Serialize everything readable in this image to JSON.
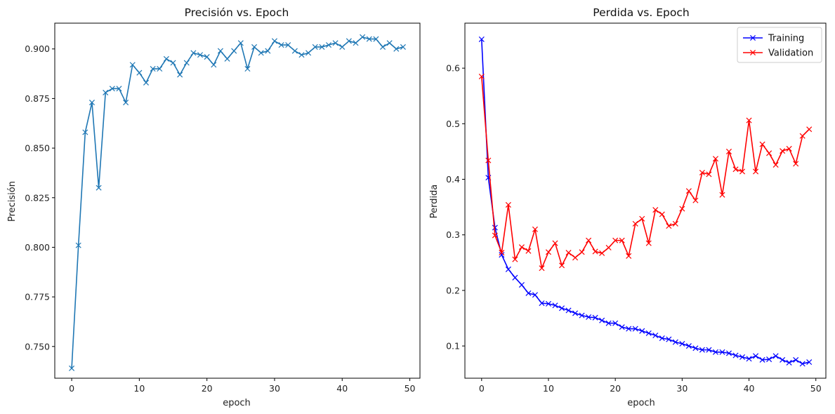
{
  "chart_data": [
    {
      "type": "line",
      "title": "Precisión vs. Epoch",
      "xlabel": "epoch",
      "ylabel": "Precisión",
      "xlim": [
        -2.5,
        51.5
      ],
      "ylim": [
        0.734,
        0.913
      ],
      "xticks": [
        "0",
        "10",
        "20",
        "30",
        "40",
        "50"
      ],
      "yticks": [
        "0.750",
        "0.775",
        "0.800",
        "0.825",
        "0.850",
        "0.875",
        "0.900"
      ],
      "grid": false,
      "legend": "none",
      "x": [
        0,
        1,
        2,
        3,
        4,
        5,
        6,
        7,
        8,
        9,
        10,
        11,
        12,
        13,
        14,
        15,
        16,
        17,
        18,
        19,
        20,
        21,
        22,
        23,
        24,
        25,
        26,
        27,
        28,
        29,
        30,
        31,
        32,
        33,
        34,
        35,
        36,
        37,
        38,
        39,
        40,
        41,
        42,
        43,
        44,
        45,
        46,
        47,
        48,
        49
      ],
      "series": [
        {
          "name": "",
          "color": "#1f77b4",
          "marker": "x",
          "values": [
            0.739,
            0.801,
            0.858,
            0.873,
            0.83,
            0.878,
            0.88,
            0.88,
            0.873,
            0.892,
            0.888,
            0.883,
            0.89,
            0.89,
            0.895,
            0.893,
            0.887,
            0.893,
            0.898,
            0.897,
            0.896,
            0.892,
            0.899,
            0.895,
            0.899,
            0.903,
            0.89,
            0.901,
            0.898,
            0.899,
            0.904,
            0.902,
            0.902,
            0.899,
            0.897,
            0.898,
            0.901,
            0.901,
            0.902,
            0.903,
            0.901,
            0.904,
            0.903,
            0.906,
            0.905,
            0.905,
            0.901,
            0.903,
            0.9,
            0.901
          ]
        }
      ]
    },
    {
      "type": "line",
      "title": "Perdida vs. Epoch",
      "xlabel": "epoch",
      "ylabel": "Perdida",
      "xlim": [
        -2.5,
        51.5
      ],
      "ylim": [
        0.042,
        0.681
      ],
      "xticks": [
        "0",
        "10",
        "20",
        "30",
        "40",
        "50"
      ],
      "yticks": [
        "0.1",
        "0.2",
        "0.3",
        "0.4",
        "0.5",
        "0.6"
      ],
      "grid": false,
      "legend": "top-right",
      "x": [
        0,
        1,
        2,
        3,
        4,
        5,
        6,
        7,
        8,
        9,
        10,
        11,
        12,
        13,
        14,
        15,
        16,
        17,
        18,
        19,
        20,
        21,
        22,
        23,
        24,
        25,
        26,
        27,
        28,
        29,
        30,
        31,
        32,
        33,
        34,
        35,
        36,
        37,
        38,
        39,
        40,
        41,
        42,
        43,
        44,
        45,
        46,
        47,
        48,
        49
      ],
      "series": [
        {
          "name": "Training",
          "color": "#0000ff",
          "marker": "x",
          "values": [
            0.652,
            0.403,
            0.313,
            0.264,
            0.238,
            0.223,
            0.21,
            0.195,
            0.192,
            0.177,
            0.176,
            0.173,
            0.168,
            0.164,
            0.159,
            0.155,
            0.152,
            0.151,
            0.146,
            0.141,
            0.141,
            0.134,
            0.131,
            0.131,
            0.127,
            0.123,
            0.119,
            0.114,
            0.112,
            0.107,
            0.104,
            0.1,
            0.096,
            0.093,
            0.093,
            0.089,
            0.089,
            0.087,
            0.083,
            0.08,
            0.077,
            0.082,
            0.075,
            0.076,
            0.082,
            0.075,
            0.07,
            0.075,
            0.068,
            0.071
          ]
        },
        {
          "name": "Validation",
          "color": "#ff0000",
          "marker": "x",
          "values": [
            0.585,
            0.434,
            0.299,
            0.268,
            0.354,
            0.256,
            0.278,
            0.271,
            0.31,
            0.24,
            0.269,
            0.285,
            0.245,
            0.268,
            0.259,
            0.269,
            0.29,
            0.27,
            0.267,
            0.277,
            0.29,
            0.29,
            0.262,
            0.32,
            0.329,
            0.285,
            0.345,
            0.337,
            0.316,
            0.32,
            0.347,
            0.379,
            0.362,
            0.412,
            0.409,
            0.437,
            0.372,
            0.45,
            0.418,
            0.414,
            0.506,
            0.414,
            0.463,
            0.447,
            0.426,
            0.451,
            0.455,
            0.428,
            0.478,
            0.49
          ]
        }
      ]
    }
  ]
}
